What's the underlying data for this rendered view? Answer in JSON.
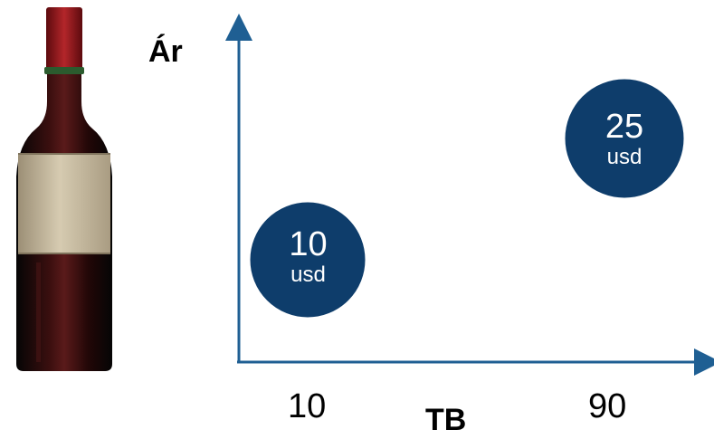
{
  "chart_data": {
    "type": "scatter",
    "xlabel": "TB",
    "ylabel": "Ár",
    "x_ticks": [
      "10",
      "90"
    ],
    "points": [
      {
        "x": 10,
        "value": "10",
        "unit": "usd"
      },
      {
        "x": 90,
        "value": "25",
        "unit": "usd"
      }
    ]
  },
  "colors": {
    "axis": "#1f5f93",
    "bubble_fill": "#0e3d6b",
    "bubble_stroke": "#ffffff",
    "label_text": "#ffffff"
  },
  "icons": {
    "bottle": "wine-bottle-icon"
  }
}
